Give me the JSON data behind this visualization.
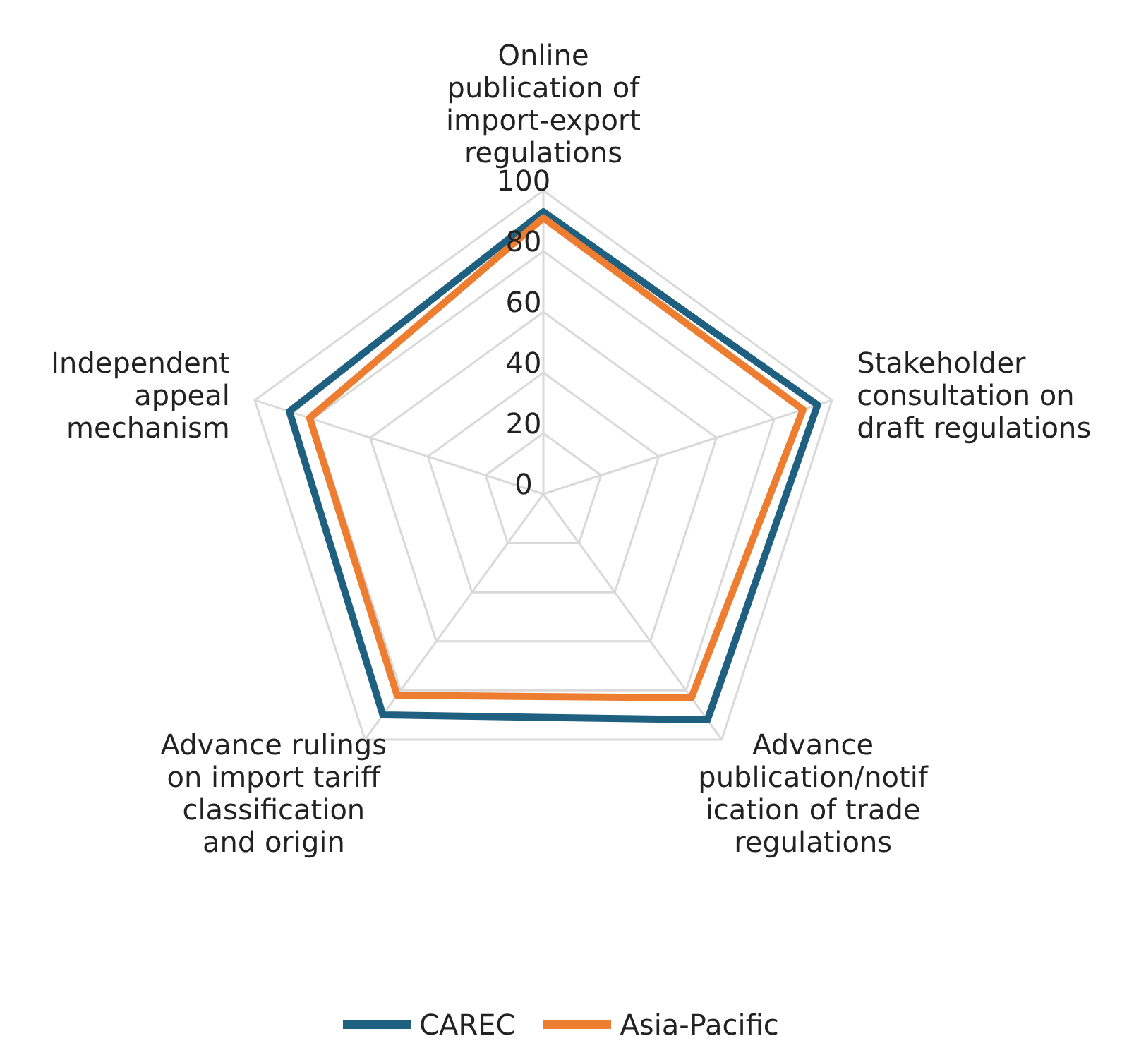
{
  "chart_data": {
    "type": "radar",
    "categories": [
      "Online publication of import-export regulations",
      "Stakeholder consultation on draft regulations",
      "Advance publication/notification of trade regulations",
      "Advance rulings on import tariff classification and origin",
      "Independent appeal mechanism"
    ],
    "series": [
      {
        "name": "CAREC",
        "color": "#1f5f7f",
        "values": [
          93,
          95,
          92,
          90,
          88
        ]
      },
      {
        "name": "Asia-Pacific",
        "color": "#ed7d31",
        "values": [
          91,
          90,
          83,
          82,
          81
        ]
      }
    ],
    "ylim": [
      0,
      100
    ],
    "yticks": [
      0,
      20,
      40,
      60,
      80,
      100
    ],
    "grid": true,
    "legend": "bottom",
    "marker": "none"
  }
}
